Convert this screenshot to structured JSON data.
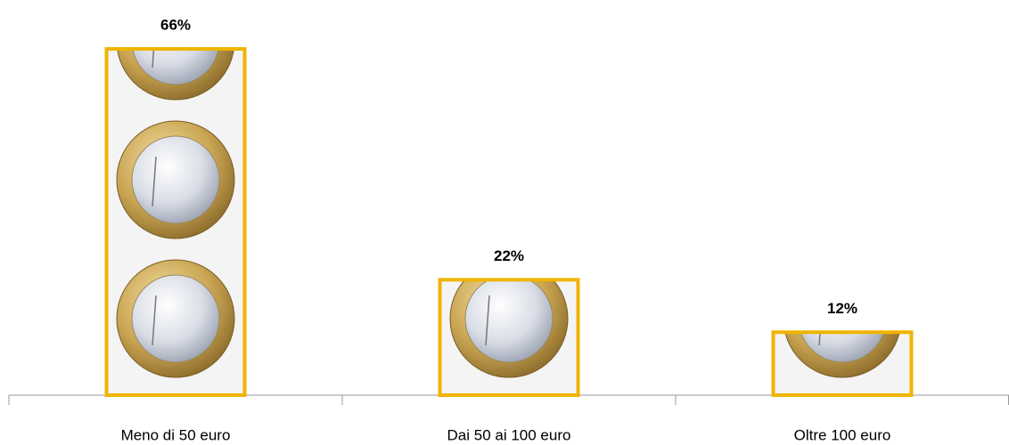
{
  "chart_data": {
    "type": "bar",
    "categories": [
      "Meno di 50 euro",
      "Dai 50 ai 100 euro",
      "Oltre 100 euro"
    ],
    "values": [
      66,
      22,
      12
    ],
    "value_labels": [
      "66%",
      "22%",
      "12%"
    ],
    "color": "#f0b400"
  }
}
